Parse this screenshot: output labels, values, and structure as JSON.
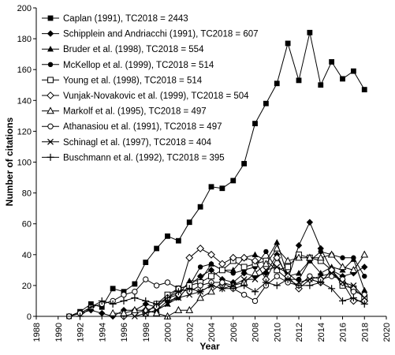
{
  "chart_data": {
    "type": "line",
    "title": "",
    "xlabel": "Year",
    "ylabel": "Number of citations",
    "xlim": [
      1988,
      2020
    ],
    "ylim": [
      0,
      200
    ],
    "xticks": [
      "1988",
      "1990",
      "1992",
      "1994",
      "1996",
      "1998",
      "2000",
      "2002",
      "2004",
      "2006",
      "2008",
      "2010",
      "2012",
      "2014",
      "2016",
      "2018",
      "2020"
    ],
    "yticks": [
      "0",
      "20",
      "40",
      "60",
      "80",
      "100",
      "120",
      "140",
      "160",
      "180",
      "200"
    ],
    "grid": false,
    "legend_position": "top-left",
    "series": [
      {
        "name": "Caplan (1991), TC2018 = 2443",
        "marker": "square-filled",
        "x": [
          1991,
          1992,
          1993,
          1994,
          1995,
          1996,
          1997,
          1998,
          1999,
          2000,
          2001,
          2002,
          2003,
          2004,
          2005,
          2006,
          2007,
          2008,
          2009,
          2010,
          2011,
          2012,
          2013,
          2014,
          2015,
          2016,
          2017,
          2018
        ],
        "y": [
          0,
          3,
          8,
          6,
          18,
          16,
          21,
          35,
          44,
          52,
          49,
          61,
          71,
          84,
          83,
          88,
          99,
          125,
          138,
          151,
          177,
          153,
          184,
          150,
          165,
          154,
          159,
          147
        ]
      },
      {
        "name": "Schipplein and Andriacchi (1991), TC2018 = 607",
        "marker": "diamond-filled",
        "x": [
          1991,
          1992,
          1993,
          1994,
          1995,
          1996,
          1997,
          1998,
          1999,
          2000,
          2001,
          2002,
          2003,
          2004,
          2005,
          2006,
          2007,
          2008,
          2009,
          2010,
          2011,
          2012,
          2013,
          2014,
          2015,
          2016,
          2017,
          2018
        ],
        "y": [
          0,
          2,
          4,
          2,
          0,
          4,
          4,
          8,
          6,
          12,
          18,
          20,
          26,
          30,
          24,
          22,
          28,
          26,
          28,
          40,
          24,
          46,
          61,
          44,
          30,
          26,
          28,
          32
        ]
      },
      {
        "name": "Bruder et al. (1998), TC2018 = 554",
        "marker": "triangle-filled",
        "x": [
          1998,
          1999,
          2000,
          2001,
          2002,
          2003,
          2004,
          2005,
          2006,
          2007,
          2008,
          2009,
          2010,
          2011,
          2012,
          2013,
          2014,
          2015,
          2016,
          2017,
          2018
        ],
        "y": [
          2,
          4,
          8,
          14,
          23,
          23,
          34,
          30,
          30,
          38,
          40,
          36,
          48,
          26,
          28,
          36,
          28,
          32,
          30,
          37,
          17
        ]
      },
      {
        "name": "McKellop et al. (1999), TC2018 = 514",
        "marker": "circle-filled",
        "x": [
          1999,
          2000,
          2001,
          2002,
          2003,
          2004,
          2005,
          2006,
          2007,
          2008,
          2009,
          2010,
          2011,
          2012,
          2013,
          2014,
          2015,
          2016,
          2017,
          2018
        ],
        "y": [
          4,
          10,
          12,
          20,
          32,
          34,
          30,
          28,
          30,
          32,
          42,
          30,
          24,
          24,
          36,
          42,
          40,
          38,
          38,
          26
        ]
      },
      {
        "name": "Young et al. (1998), TC2018 = 514",
        "marker": "square-open",
        "x": [
          1998,
          1999,
          2000,
          2001,
          2002,
          2003,
          2004,
          2005,
          2006,
          2007,
          2008,
          2009,
          2010,
          2011,
          2012,
          2013,
          2014,
          2015,
          2016,
          2017,
          2018
        ],
        "y": [
          2,
          8,
          14,
          18,
          20,
          22,
          26,
          30,
          36,
          32,
          34,
          36,
          30,
          32,
          40,
          38,
          36,
          30,
          20,
          18,
          12
        ]
      },
      {
        "name": "Vunjak-Novakovic et al. (1999), TC2018 = 504",
        "marker": "diamond-open",
        "x": [
          1996,
          1997,
          1998,
          1999,
          2000,
          2001,
          2002,
          2003,
          2004,
          2005,
          2006,
          2007,
          2008,
          2009,
          2010,
          2011,
          2012,
          2013,
          2014,
          2015,
          2016,
          2017,
          2018
        ],
        "y": [
          0,
          2,
          4,
          6,
          12,
          14,
          38,
          44,
          40,
          34,
          38,
          38,
          36,
          24,
          38,
          26,
          18,
          24,
          22,
          30,
          22,
          10,
          10
        ]
      },
      {
        "name": "Markolf et al. (1995), TC2018 = 497",
        "marker": "triangle-open",
        "x": [
          1995,
          1996,
          1997,
          1998,
          1999,
          2000,
          2001,
          2002,
          2003,
          2004,
          2005,
          2006,
          2007,
          2008,
          2009,
          2010,
          2011,
          2012,
          2013,
          2014,
          2015,
          2016,
          2017,
          2018
        ],
        "y": [
          2,
          2,
          4,
          4,
          2,
          0,
          4,
          4,
          12,
          16,
          22,
          20,
          22,
          28,
          34,
          44,
          36,
          38,
          38,
          38,
          40,
          32,
          30,
          40
        ]
      },
      {
        "name": "Athanasiou et al. (1991), TC2018 = 497",
        "marker": "circle-open",
        "x": [
          1991,
          1992,
          1993,
          1994,
          1995,
          1996,
          1997,
          1998,
          1999,
          2000,
          2001,
          2002,
          2003,
          2004,
          2005,
          2006,
          2007,
          2008,
          2009,
          2010,
          2011,
          2012,
          2013,
          2014,
          2015,
          2016,
          2017,
          2018
        ],
        "y": [
          0,
          2,
          6,
          8,
          10,
          14,
          16,
          24,
          20,
          22,
          18,
          16,
          20,
          22,
          22,
          18,
          14,
          10,
          20,
          26,
          22,
          20,
          26,
          24,
          26,
          24,
          16,
          14
        ]
      },
      {
        "name": "Schinagl et al. (1997), TC2018 = 404",
        "marker": "x",
        "x": [
          1997,
          1998,
          1999,
          2000,
          2001,
          2002,
          2003,
          2004,
          2005,
          2006,
          2007,
          2008,
          2009,
          2010,
          2011,
          2012,
          2013,
          2014,
          2015,
          2016,
          2017,
          2018
        ],
        "y": [
          0,
          2,
          4,
          8,
          12,
          14,
          16,
          20,
          18,
          20,
          24,
          24,
          30,
          32,
          28,
          22,
          24,
          26,
          28,
          22,
          20,
          12
        ]
      },
      {
        "name": "Buschmann et al. (1992), TC2018 = 395",
        "marker": "plus",
        "x": [
          1992,
          1993,
          1994,
          1995,
          1996,
          1997,
          1998,
          1999,
          2000,
          2001,
          2002,
          2003,
          2004,
          2005,
          2006,
          2007,
          2008,
          2009,
          2010,
          2011,
          2012,
          2013,
          2014,
          2015,
          2016,
          2017,
          2018
        ],
        "y": [
          0,
          6,
          10,
          8,
          10,
          12,
          10,
          8,
          12,
          16,
          18,
          16,
          20,
          18,
          18,
          20,
          16,
          22,
          20,
          24,
          20,
          20,
          22,
          18,
          10,
          12,
          8
        ]
      }
    ]
  }
}
